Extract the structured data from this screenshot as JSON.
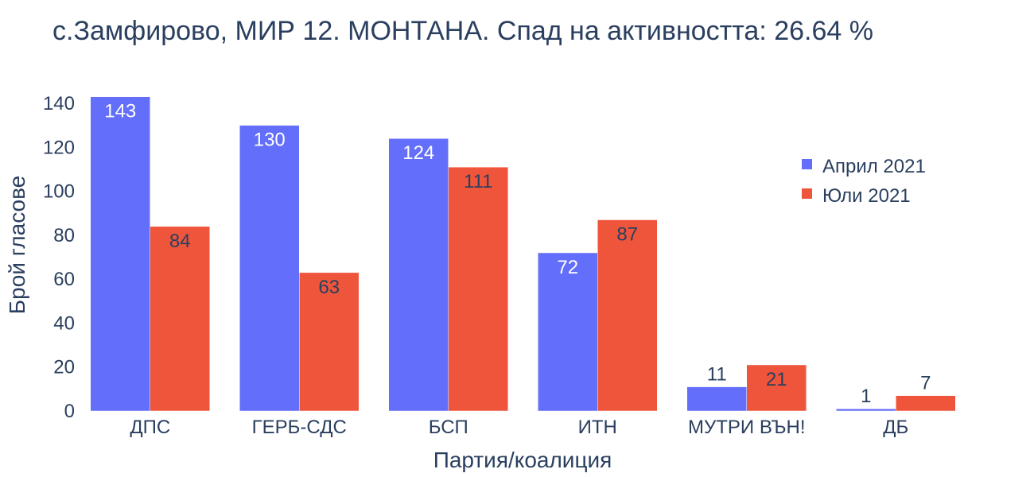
{
  "chart_data": {
    "type": "bar",
    "title": "с.Замфирово, МИР 12. МОНТАНА. Спад на активността: 26.64 %",
    "xlabel": "Партия/коалиция",
    "ylabel": "Брой гласове",
    "categories": [
      "ДПС",
      "ГЕРБ-СДС",
      "БСП",
      "ИТН",
      "МУТРИ ВЪН!",
      "ДБ"
    ],
    "series": [
      {
        "name": "Април 2021",
        "color": "#636efa",
        "values": [
          143,
          130,
          124,
          72,
          11,
          1
        ]
      },
      {
        "name": "Юли 2021",
        "color": "#ef553b",
        "values": [
          84,
          63,
          111,
          87,
          21,
          7
        ]
      }
    ],
    "ylim": [
      0,
      140
    ],
    "yticks": [
      0,
      20,
      40,
      60,
      80,
      100,
      120,
      140
    ],
    "grid": false,
    "legend_position": "top-right"
  }
}
